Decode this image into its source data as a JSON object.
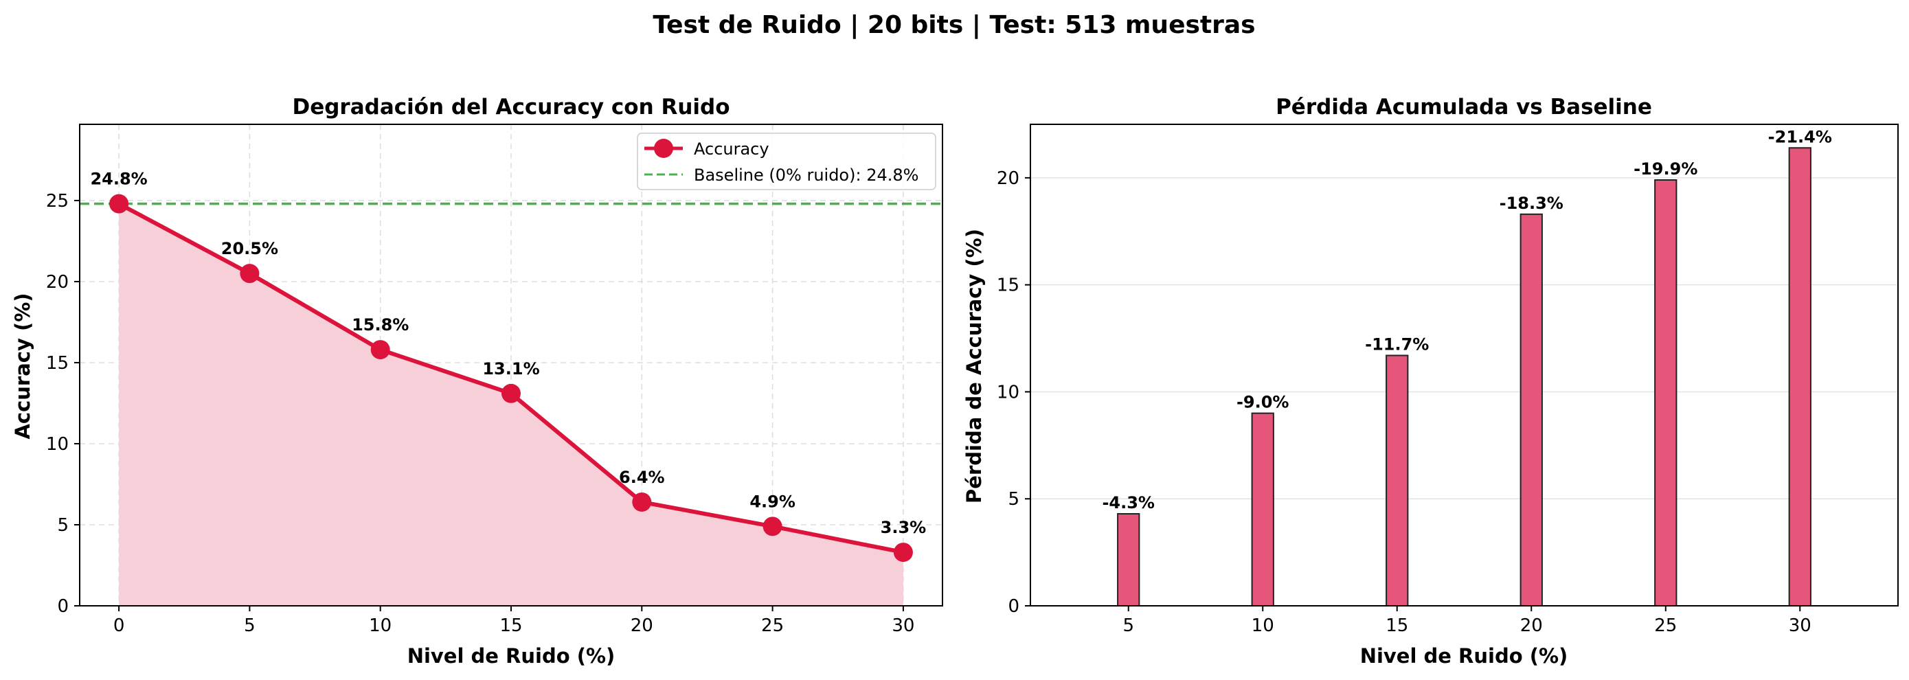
{
  "figure": {
    "suptitle": "Test de Ruido | 20 bits | Test: 513 muestras"
  },
  "chart_data": [
    {
      "type": "line",
      "title": "Degradación del Accuracy con Ruido",
      "xlabel": "Nivel de Ruido (%)",
      "ylabel": "Accuracy (%)",
      "x": [
        0,
        5,
        10,
        15,
        20,
        25,
        30
      ],
      "values": [
        24.8,
        20.5,
        15.8,
        13.1,
        6.4,
        4.9,
        3.3
      ],
      "point_labels": [
        "24.8%",
        "20.5%",
        "15.8%",
        "13.1%",
        "6.4%",
        "4.9%",
        "3.3%"
      ],
      "baseline": 24.8,
      "xlim": [
        -1.5,
        31.5
      ],
      "ylim": [
        0,
        29.7
      ],
      "xticks": [
        0,
        5,
        10,
        15,
        20,
        25,
        30
      ],
      "yticks": [
        0,
        5,
        10,
        15,
        20,
        25
      ],
      "grid": true,
      "fill_under": true,
      "legend": {
        "placement": "top-right",
        "entries": [
          "Accuracy",
          "Baseline (0% ruido): 24.8%"
        ]
      },
      "colors": {
        "line": "#dc143c",
        "fill": "#f7cfd8",
        "baseline": "#4caf50"
      }
    },
    {
      "type": "bar",
      "title": "Pérdida Acumulada vs Baseline",
      "xlabel": "Nivel de Ruido (%)",
      "ylabel": "Pérdida de Accuracy (%)",
      "categories": [
        5,
        10,
        15,
        20,
        25,
        30
      ],
      "values": [
        4.3,
        9.0,
        11.7,
        18.3,
        19.9,
        21.4
      ],
      "bar_labels": [
        "-4.3%",
        "-9.0%",
        "-11.7%",
        "-18.3%",
        "-19.9%",
        "-21.4%"
      ],
      "xlim": [
        1.35,
        33.65
      ],
      "ylim": [
        0,
        22.5
      ],
      "xticks": [
        5,
        10,
        15,
        20,
        25,
        30
      ],
      "yticks": [
        0,
        5,
        10,
        15,
        20
      ],
      "grid": true,
      "colors": {
        "bar": "#e5567a",
        "edge": "#222222"
      }
    }
  ]
}
